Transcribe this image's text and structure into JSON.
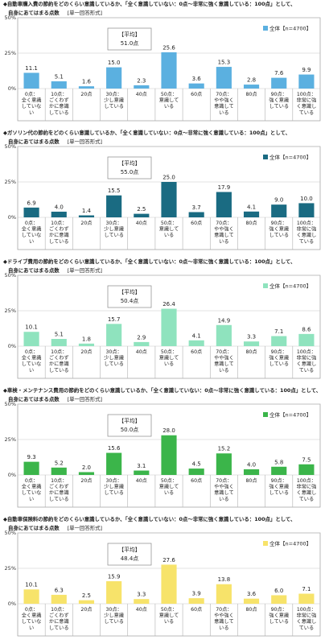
{
  "answer_type": "[単一回答形式]",
  "avg_label": "【平均】",
  "legend_n": "全体【n=4700】",
  "panel_titles": [
    {
      "line1": "◆自動車購入費の節約をどのくらい意識しているか、「全く意識していない：0点～非常に強く意識している：100点」として、",
      "line2": "自身にあてはまる点数"
    },
    {
      "line1": "◆ガソリン代の節約をどのくらい意識しているか、「全く意識していない：0点～非常に強く意識している：100点」として、",
      "line2": "自身にあてはまる点数"
    },
    {
      "line1": "◆ドライブ費用の節約をどのくらい意識しているか、「全く意識していない：0点～非常に強く意識している：100点」として、",
      "line2": "自身にあてはまる点数"
    },
    {
      "line1": "◆車検・メンテナンス費用の節約をどのくらい意識しているか、「全く意識していない：0点～非常に強く意識している：100点」として、",
      "line2": "自身にあてはまる点数"
    },
    {
      "line1": "◆自動車保険料の節約をどのくらい意識しているか、「全く意識していない：0点～非常に強く意識している：100点」として、",
      "line2": "自身にあてはまる点数"
    }
  ],
  "chart_data": [
    {
      "type": "bar",
      "ylim": [
        0,
        50
      ],
      "yticks": [
        "0%",
        "25%",
        "50%"
      ],
      "average": "51.0点",
      "colors": {
        "bar": "#5bb0e0"
      },
      "categories": [
        "0点：全く意識していない",
        "10点：ごくわずかに意識している",
        "20点",
        "30点：少し意識している",
        "40点",
        "50点：意識している",
        "60点",
        "70点：やや強く意識している",
        "80点",
        "90点：強く意識している",
        "100点：非常に強く意識している"
      ],
      "series": [
        {
          "name": "全体【n=4700】",
          "values": [
            11.1,
            5.1,
            1.6,
            15.0,
            2.3,
            25.6,
            3.6,
            15.3,
            2.8,
            7.6,
            9.9
          ]
        }
      ]
    },
    {
      "type": "bar",
      "ylim": [
        0,
        50
      ],
      "yticks": [
        "0%",
        "25%",
        "50%"
      ],
      "average": "55.0点",
      "colors": {
        "bar": "#1a6b82"
      },
      "categories": [
        "0点：全く意識していない",
        "10点：ごくわずかに意識している",
        "20点",
        "30点：少し意識している",
        "40点",
        "50点：意識している",
        "60点",
        "70点：やや強く意識している",
        "80点",
        "90点：強く意識している",
        "100点：非常に強く意識している"
      ],
      "series": [
        {
          "name": "全体【n=4700】",
          "values": [
            6.9,
            4.0,
            1.4,
            15.5,
            2.5,
            25.0,
            3.7,
            17.9,
            4.1,
            9.0,
            10.0
          ]
        }
      ]
    },
    {
      "type": "bar",
      "ylim": [
        0,
        50
      ],
      "yticks": [
        "0%",
        "25%",
        "50%"
      ],
      "average": "50.4点",
      "colors": {
        "bar": "#8fe3be"
      },
      "categories": [
        "0点：全く意識していない",
        "10点：ごくわずかに意識している",
        "20点",
        "30点：少し意識している",
        "40点",
        "50点：意識している",
        "60点",
        "70点：やや強く意識している",
        "80点",
        "90点：強く意識している",
        "100点：非常に強く意識している"
      ],
      "series": [
        {
          "name": "全体【n=4700】",
          "values": [
            10.1,
            5.1,
            1.8,
            15.7,
            2.9,
            26.4,
            4.1,
            14.9,
            3.3,
            7.1,
            8.6
          ]
        }
      ]
    },
    {
      "type": "bar",
      "ylim": [
        0,
        50
      ],
      "yticks": [
        "0%",
        "25%",
        "50%"
      ],
      "average": "50.0点",
      "colors": {
        "bar": "#3bb54a"
      },
      "categories": [
        "0点：全く意識していない",
        "10点：ごくわずかに意識している",
        "20点",
        "30点：少し意識している",
        "40点",
        "50点：意識している",
        "60点",
        "70点：やや強く意識している",
        "80点",
        "90点：強く意識している",
        "100点：非常に強く意識している"
      ],
      "series": [
        {
          "name": "全体【n=4700】",
          "values": [
            9.3,
            5.2,
            2.0,
            15.6,
            3.1,
            28.0,
            4.5,
            15.2,
            4.0,
            5.8,
            7.5
          ]
        }
      ]
    },
    {
      "type": "bar",
      "ylim": [
        0,
        50
      ],
      "yticks": [
        "0%",
        "25%",
        "50%"
      ],
      "average": "48.4点",
      "colors": {
        "bar": "#f7e36a"
      },
      "categories": [
        "0点：全く意識していない",
        "10点：ごくわずかに意識している",
        "20点",
        "30点：少し意識している",
        "40点",
        "50点：意識している",
        "60点",
        "70点：やや強く意識している",
        "80点",
        "90点：強く意識している",
        "100点：非常に強く意識している"
      ],
      "series": [
        {
          "name": "全体【n=4700】",
          "values": [
            10.1,
            6.3,
            2.5,
            15.9,
            3.3,
            27.6,
            3.9,
            13.8,
            3.6,
            6.0,
            7.1
          ]
        }
      ]
    }
  ]
}
